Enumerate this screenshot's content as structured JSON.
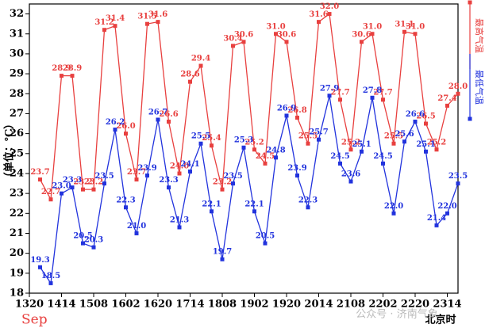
{
  "chart_data": {
    "type": "line",
    "ylabel": "（单位：℃）",
    "month_label": "Sep",
    "xlabel": "北京时",
    "watermark": "公众号 · 济南气象",
    "xlim": [
      -1,
      39
    ],
    "xticks": [
      {
        "value": -1,
        "label": "1320"
      },
      {
        "value": 2,
        "label": "1414"
      },
      {
        "value": 5,
        "label": "1508"
      },
      {
        "value": 8,
        "label": "1602"
      },
      {
        "value": 11,
        "label": "1620"
      },
      {
        "value": 14,
        "label": "1714"
      },
      {
        "value": 17,
        "label": "1808"
      },
      {
        "value": 20,
        "label": "1902"
      },
      {
        "value": 23,
        "label": "1920"
      },
      {
        "value": 26,
        "label": "2014"
      },
      {
        "value": 29,
        "label": "2108"
      },
      {
        "value": 32,
        "label": "2202"
      },
      {
        "value": 35,
        "label": "2220"
      },
      {
        "value": 38,
        "label": "2314"
      }
    ],
    "ylim": [
      18,
      32.5
    ],
    "yticks": [
      18,
      19,
      20,
      21,
      22,
      23,
      24,
      25,
      26,
      27,
      28,
      29,
      30,
      31,
      32
    ],
    "series": [
      {
        "name": "最高气温",
        "color": "#e8403f",
        "values": [
          23.7,
          22.7,
          28.9,
          28.9,
          23.2,
          23.2,
          31.2,
          31.4,
          26.0,
          23.7,
          31.5,
          31.6,
          26.6,
          24.0,
          28.6,
          29.4,
          25.4,
          23.2,
          30.4,
          30.6,
          25.2,
          24.5,
          31.0,
          30.6,
          26.8,
          25.5,
          31.6,
          32.0,
          27.7,
          25.2,
          30.6,
          31.0,
          27.7,
          25.5,
          31.1,
          31.0,
          26.5,
          25.2,
          27.4,
          28.0
        ],
        "value_labels": [
          "23.7",
          "22.7",
          "28.9",
          "28.9",
          "23.2",
          "23.2",
          "31.2",
          "31.4",
          "26.0",
          "23.7",
          "31.5",
          "31.6",
          "26.6",
          "24.0",
          "28.6",
          "29.4",
          "25.4",
          "23.2",
          "30.4",
          "30.6",
          "25.2",
          "24.5",
          "31.0",
          "30.6",
          "26.8",
          "25.5",
          "31.6",
          "32.0",
          "27.7",
          "25.2",
          "30.6",
          "31.0",
          "27.7",
          "25.5",
          "31.1",
          "31.0",
          "26.5",
          "25.2",
          "27.4",
          "28.0"
        ]
      },
      {
        "name": "最低气温",
        "color": "#2233dd",
        "values": [
          19.3,
          18.5,
          23.0,
          23.3,
          20.5,
          20.3,
          23.5,
          26.2,
          22.3,
          21.0,
          23.9,
          26.7,
          23.3,
          21.3,
          24.1,
          25.5,
          22.1,
          19.7,
          23.5,
          25.3,
          22.1,
          20.5,
          24.8,
          26.9,
          23.9,
          22.3,
          25.7,
          27.9,
          24.5,
          23.6,
          25.1,
          27.8,
          24.5,
          22.0,
          25.6,
          26.6,
          25.1,
          21.4,
          22.0,
          23.5
        ],
        "value_labels": [
          "19.3",
          "18.5",
          "23.0",
          "23.3",
          "20.5",
          "20.3",
          "23.5",
          "26.2",
          "22.3",
          "21.0",
          "23.9",
          "26.7",
          "23.3",
          "21.3",
          "24.1",
          "25.5",
          "22.1",
          "19.7",
          "23.5",
          "25.3",
          "22.1",
          "20.5",
          "24.8",
          "26.9",
          "23.9",
          "22.3",
          "25.7",
          "27.9",
          "24.5",
          "23.6",
          "25.1",
          "27.8",
          "24.5",
          "22.0",
          "25.6",
          "26.6",
          "25.1",
          "21.4",
          "22.0",
          "23.5"
        ]
      }
    ]
  }
}
